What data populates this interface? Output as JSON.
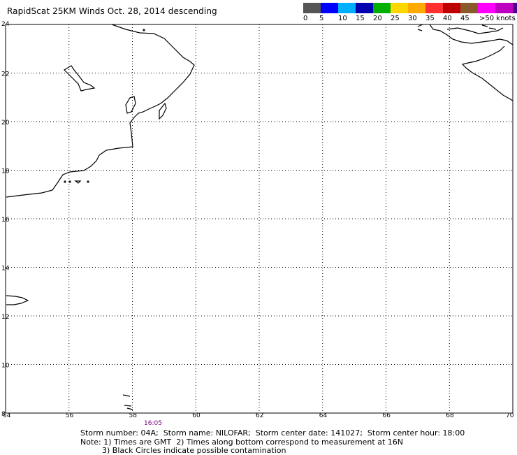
{
  "title": "RapidScat 25KM Winds Oct. 28, 2014 descending",
  "legend": {
    "colors": [
      "#555555",
      "#0000ff",
      "#00b0ff",
      "#0000b0",
      "#00b000",
      "#ffd700",
      "#ffaa00",
      "#ff3030",
      "#c00000",
      "#8b5a2b",
      "#ff00ff",
      "#c000c0",
      "#500090"
    ],
    "labels": [
      "0",
      "5",
      "10",
      "15",
      "20",
      "25",
      "30",
      "35",
      "40",
      "45",
      ">50 knots"
    ]
  },
  "axes": {
    "x_ticks": [
      "54",
      "56",
      "58",
      "60",
      "62",
      "64",
      "66",
      "68",
      "70"
    ],
    "y_ticks": [
      "24",
      "22",
      "20",
      "18",
      "16",
      "14",
      "12",
      "10",
      "8"
    ],
    "lon_range": [
      54,
      70
    ],
    "lat_range": [
      8,
      24
    ]
  },
  "time_label": "16:05",
  "storm_info": "Storm number: 04A;  Storm name: NILOFAR;  Storm center date: 141027;  Storm center hour: 18:00",
  "note_line1": "Note: 1) Times are GMT  2) Times along bottom correspond to measurement at 16N",
  "note_line2": "3) Black Circles indicate possible contamination"
}
